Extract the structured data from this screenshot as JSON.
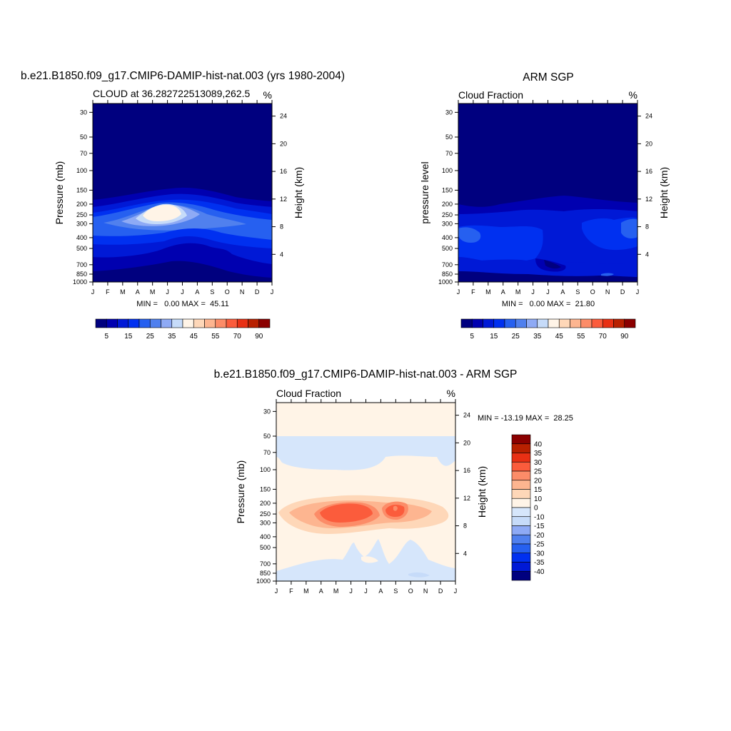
{
  "chart_data": [
    {
      "type": "contour",
      "title": "b.e21.B1850.f09_g17.CMIP6-DAMIP-hist-nat.003 (yrs 1980-2004)",
      "left_label": "CLOUD at 36.282722513089,262.5",
      "right_label": "%",
      "ylabel": "Pressure (mb)",
      "ylabel_right": "Height (km)",
      "xlabel": "",
      "x_tick_labels": [
        "J",
        "F",
        "M",
        "A",
        "M",
        "J",
        "J",
        "A",
        "S",
        "O",
        "N",
        "D",
        "J"
      ],
      "y_ticks": [
        30,
        50,
        70,
        100,
        150,
        200,
        250,
        300,
        400,
        500,
        700,
        850,
        1000
      ],
      "y_ticks_right": [
        24,
        20,
        16,
        12,
        8,
        4
      ],
      "y_range": [
        1000,
        25
      ],
      "scale": "log-pressure",
      "stats": "MIN =   0.00 MAX =  45.11",
      "min": 0.0,
      "max": 45.11,
      "colorbar": {
        "orientation": "horizontal",
        "tick_labels": [
          "5",
          "15",
          "25",
          "35",
          "45",
          "55",
          "70",
          "90"
        ],
        "colors": [
          "#00007f",
          "#0000b0",
          "#0019d6",
          "#0030f0",
          "#2660f0",
          "#5080ee",
          "#8eaaf5",
          "#c6dbf9",
          "#fff4e7",
          "#fed7b8",
          "#fdb590",
          "#fc8c68",
          "#fb5c3c",
          "#e83014",
          "#b82000",
          "#8b0000"
        ]
      }
    },
    {
      "type": "contour",
      "title": "ARM SGP",
      "left_label": "Cloud Fraction",
      "right_label": "%",
      "ylabel": "pressure level",
      "ylabel_right": "Height (km)",
      "xlabel": "",
      "x_tick_labels": [
        "J",
        "F",
        "M",
        "A",
        "M",
        "J",
        "J",
        "A",
        "S",
        "O",
        "N",
        "D",
        "J"
      ],
      "y_ticks": [
        30,
        50,
        70,
        100,
        150,
        200,
        250,
        300,
        400,
        500,
        700,
        850,
        1000
      ],
      "y_ticks_right": [
        24,
        20,
        16,
        12,
        8,
        4
      ],
      "y_range": [
        1000,
        25
      ],
      "scale": "log-pressure",
      "stats": "MIN =   0.00 MAX =  21.80",
      "min": 0.0,
      "max": 21.8,
      "colorbar": {
        "orientation": "horizontal",
        "tick_labels": [
          "5",
          "15",
          "25",
          "35",
          "45",
          "55",
          "70",
          "90"
        ],
        "colors": [
          "#00007f",
          "#0000b0",
          "#0019d6",
          "#0030f0",
          "#2660f0",
          "#5080ee",
          "#8eaaf5",
          "#c6dbf9",
          "#fff4e7",
          "#fed7b8",
          "#fdb590",
          "#fc8c68",
          "#fb5c3c",
          "#e83014",
          "#b82000",
          "#8b0000"
        ]
      }
    },
    {
      "type": "contour",
      "title": "b.e21.B1850.f09_g17.CMIP6-DAMIP-hist-nat.003 - ARM SGP",
      "left_label": "Cloud Fraction",
      "right_label": "%",
      "ylabel": "Pressure (mb)",
      "ylabel_right": "Height (km)",
      "xlabel": "",
      "x_tick_labels": [
        "J",
        "F",
        "M",
        "A",
        "M",
        "J",
        "J",
        "A",
        "S",
        "O",
        "N",
        "D",
        "J"
      ],
      "y_ticks": [
        30,
        50,
        70,
        100,
        150,
        200,
        250,
        300,
        400,
        500,
        700,
        850,
        1000
      ],
      "y_ticks_right": [
        24,
        20,
        16,
        12,
        8,
        4
      ],
      "y_range": [
        1000,
        25
      ],
      "scale": "log-pressure",
      "stats": "MIN = -13.19 MAX =  28.25",
      "min": -13.19,
      "max": 28.25,
      "colorbar": {
        "orientation": "vertical",
        "tick_labels": [
          "40",
          "35",
          "30",
          "25",
          "20",
          "15",
          "10",
          "0",
          "-10",
          "-15",
          "-20",
          "-25",
          "-30",
          "-35",
          "-40"
        ],
        "colors": [
          "#8b0000",
          "#b82000",
          "#e83014",
          "#fb5c3c",
          "#fc8c68",
          "#fdb590",
          "#fed7b8",
          "#fff4e7",
          "#d6e6fb",
          "#c6dbf9",
          "#8eaaf5",
          "#5080ee",
          "#2660f0",
          "#0030f0",
          "#0019d6",
          "#00007f"
        ]
      }
    }
  ]
}
